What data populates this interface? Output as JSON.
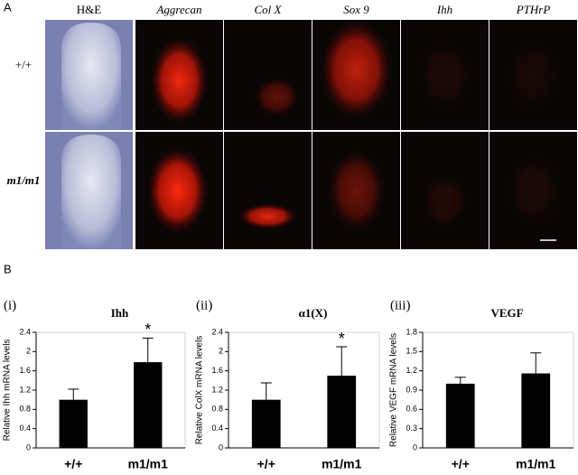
{
  "panel_a": {
    "label": "A",
    "column_headers": [
      "H&E",
      "Aggrecan",
      "Col X",
      "Sox 9",
      "Ihh",
      "PTHrP"
    ],
    "row_labels": [
      "+/+",
      "m1/m1"
    ]
  },
  "panel_b": {
    "label": "B"
  },
  "chart_data": [
    {
      "type": "bar",
      "panel": "(i)",
      "title": "Ihh",
      "ylabel": "Relative Ihh mRNA levels",
      "categories": [
        "+/+",
        "m1/m1"
      ],
      "values": [
        1.0,
        1.78
      ],
      "errors": [
        0.22,
        0.5
      ],
      "color": "#000000",
      "annotation": "*",
      "ylim": [
        0,
        2.4
      ],
      "yticks": [
        0,
        0.4,
        0.8,
        1.2,
        1.6,
        2,
        2.4
      ]
    },
    {
      "type": "bar",
      "panel": "(ii)",
      "title": "α1(X)",
      "ylabel": "Relative ColX mRNA levels",
      "categories": [
        "+/+",
        "m1/m1"
      ],
      "values": [
        1.0,
        1.5
      ],
      "errors": [
        0.35,
        0.6
      ],
      "color": "#000000",
      "annotation": "*",
      "ylim": [
        0,
        2.4
      ],
      "yticks": [
        0,
        0.4,
        0.8,
        1.2,
        1.6,
        2,
        2.4
      ]
    },
    {
      "type": "bar",
      "panel": "(iii)",
      "title": "VEGF",
      "ylabel": "Relative VEGF mRNA levels",
      "categories": [
        "+/+",
        "m1/m1"
      ],
      "values": [
        1.0,
        1.16
      ],
      "errors": [
        0.1,
        0.32
      ],
      "color": "#000000",
      "ylim": [
        0,
        1.8
      ],
      "yticks": [
        0,
        0.3,
        0.6,
        0.9,
        1.2,
        1.5,
        1.8
      ]
    }
  ]
}
